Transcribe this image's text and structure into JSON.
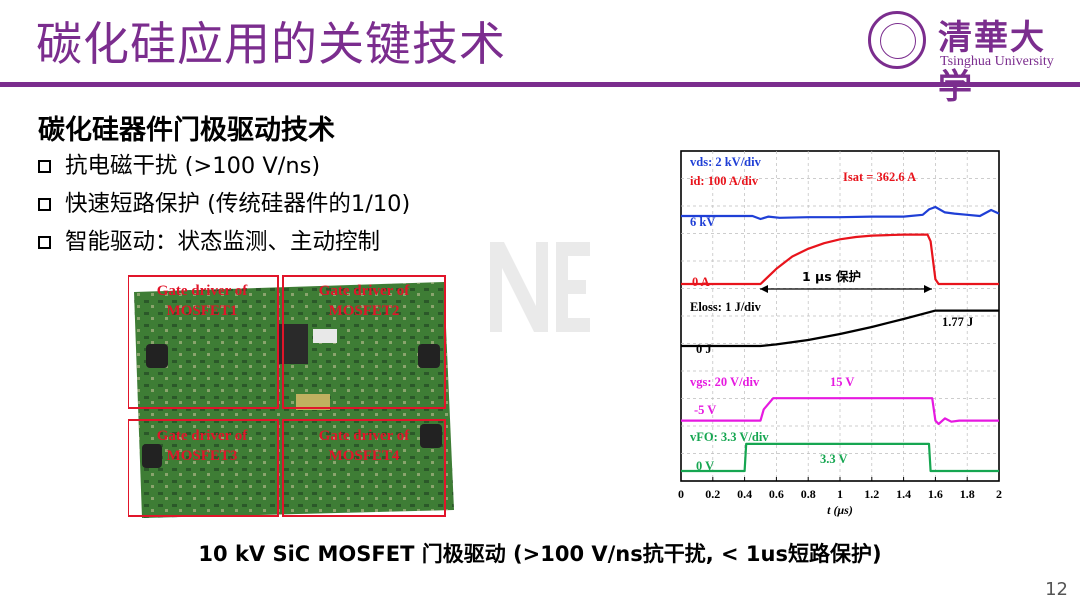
{
  "slide": {
    "title": "碳化硅应用的关键技术",
    "logo": {
      "name_cn": "清華大学",
      "name_en": "Tsinghua University"
    },
    "subtitle": "碳化硅器件门极驱动技术",
    "bullets": [
      "抗电磁干扰 (>100 V/ns)",
      "快速短路保护 (传统硅器件的1/10)",
      "智能驱动：状态监测、主动控制"
    ],
    "board_labels": [
      "Gate driver of MOSFET1",
      "Gate driver of MOSFET2",
      "Gate driver of MOSFET3",
      "Gate driver of MOSFET4"
    ],
    "caption": "10 kV SiC MOSFET 门极驱动 (>100 V/ns抗干扰, < 1us短路保护)",
    "page_number": "12"
  },
  "chart_data": {
    "type": "line",
    "xlabel": "t (μs)",
    "xlim": [
      0,
      2
    ],
    "x_ticks": [
      "0",
      "0.2",
      "0.4",
      "0.6",
      "0.8",
      "1",
      "1.2",
      "1.4",
      "1.6",
      "1.8",
      "2"
    ],
    "panels": [
      {
        "labels": {
          "vds": "vds: 2 kV/div",
          "id": "id: 100 A/div",
          "level_vds": "6 kV",
          "level_id": "0 A",
          "isat": "Isat = 362.6 A",
          "protection": "1 μs 保护"
        },
        "series": [
          {
            "key": "vds",
            "color": "#1f3fd6",
            "x": [
              0,
              0.45,
              0.5,
              0.55,
              0.62,
              0.8,
              1.0,
              1.2,
              1.4,
              1.52,
              1.56,
              1.6,
              1.66,
              1.72,
              1.8,
              1.88,
              1.95,
              2.0
            ],
            "y": [
              0,
              0,
              -0.25,
              -0.05,
              -0.15,
              -0.1,
              -0.1,
              -0.05,
              -0.05,
              0.1,
              0.55,
              0.75,
              0.3,
              0.2,
              0.1,
              0.0,
              0.5,
              0.2
            ]
          },
          {
            "key": "id",
            "color": "#e8141c",
            "x": [
              0,
              0.5,
              0.6,
              0.7,
              0.8,
              0.9,
              1.0,
              1.1,
              1.2,
              1.3,
              1.4,
              1.5,
              1.55,
              1.57,
              1.6,
              1.62,
              2.0
            ],
            "y": [
              0,
              0,
              1.6,
              2.9,
              3.7,
              4.3,
              4.7,
              4.95,
              5.1,
              5.15,
              5.2,
              5.2,
              5.2,
              4.5,
              0.5,
              0,
              0
            ]
          }
        ]
      },
      {
        "labels": {
          "eloss": "Eloss: 1 J/div",
          "level": "0 J",
          "final": "1.77 J"
        },
        "series": [
          {
            "key": "eloss",
            "color": "#000000",
            "x": [
              0,
              0.5,
              0.6,
              0.8,
              1.0,
              1.2,
              1.4,
              1.6,
              2.0
            ],
            "y": [
              0,
              0,
              0.08,
              0.3,
              0.6,
              0.95,
              1.35,
              1.77,
              1.77
            ]
          }
        ]
      },
      {
        "labels": {
          "vgs": "vgs: 20 V/div",
          "high": "15 V",
          "low": "-5 V"
        },
        "series": [
          {
            "key": "vgs",
            "color": "#e619e0",
            "x": [
              0,
              0.5,
              0.52,
              0.58,
              1.56,
              1.58,
              1.6,
              1.62,
              1.66,
              1.7,
              1.75,
              1.8,
              2.0
            ],
            "y": [
              -5,
              -5,
              5,
              15,
              15,
              15,
              -5,
              -8,
              -3,
              -6,
              -5,
              -5,
              -5
            ]
          }
        ]
      },
      {
        "labels": {
          "vfo": "vFO: 3.3 V/div",
          "high": "3.3 V",
          "low": "0 V"
        },
        "series": [
          {
            "key": "vfo",
            "color": "#16a651",
            "x": [
              0,
              0.4,
              0.41,
              1.56,
              1.57,
              2.0
            ],
            "y": [
              0,
              0,
              3.3,
              3.3,
              0,
              0
            ]
          }
        ]
      }
    ]
  }
}
